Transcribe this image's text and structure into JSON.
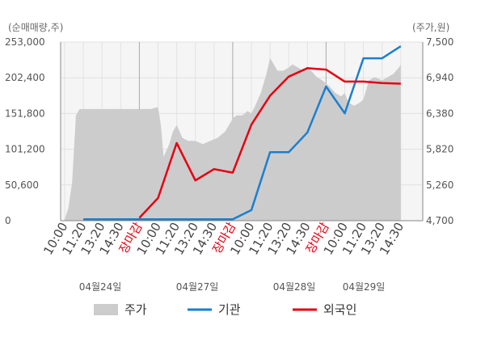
{
  "chart_data": {
    "type": "line",
    "left_axis_label": "(순매매량,주)",
    "right_axis_label": "(주가,원)",
    "left_ticks": [
      "253,000",
      "202,400",
      "151,800",
      "101,200",
      "50,600",
      "0"
    ],
    "right_ticks": [
      "7,500",
      "6,940",
      "6,380",
      "5,820",
      "5,260",
      "4,700"
    ],
    "left_range": [
      0,
      253000
    ],
    "right_range": [
      4700,
      7500
    ],
    "x_ticks": [
      "10:00",
      "11:20",
      "13:20",
      "14:30",
      "장마감",
      "10:00",
      "11:20",
      "13:20",
      "14:30",
      "장마감",
      "10:00",
      "11:20",
      "13:20",
      "14:30",
      "장마감",
      "10:00",
      "11:20",
      "13:20",
      "14:30"
    ],
    "x_tick_highlight": "장마감",
    "dates": [
      "04월24일",
      "04월27일",
      "04월28일",
      "04월29일"
    ],
    "legend": [
      {
        "name": "주가",
        "color": "#cccccc",
        "shape": "area"
      },
      {
        "name": "기관",
        "color": "#1a7fd0",
        "shape": "line"
      },
      {
        "name": "외국인",
        "color": "#e60012",
        "shape": "line"
      }
    ],
    "series": [
      {
        "name": "기관",
        "color": "#1a7fd0",
        "x": [
          1,
          2,
          3,
          4,
          5,
          6,
          7,
          8,
          9,
          10,
          11,
          12,
          13,
          14,
          15,
          16,
          17,
          18
        ],
        "values": [
          2000,
          2000,
          2000,
          2000,
          2000,
          2000,
          2000,
          2000,
          2000,
          15000,
          97000,
          97000,
          125000,
          190000,
          152000,
          230000,
          230000,
          247000
        ]
      },
      {
        "name": "외국인",
        "color": "#e60012",
        "x": [
          4,
          5,
          6,
          7,
          8,
          9,
          10,
          11,
          12,
          13,
          14,
          15,
          16,
          17,
          18
        ],
        "values": [
          4000,
          32000,
          110000,
          57000,
          73000,
          68000,
          136000,
          177000,
          204000,
          216000,
          214000,
          197000,
          197000,
          195000,
          194000
        ]
      },
      {
        "name": "주가",
        "color": "#cccccc",
        "x": [
          0,
          0.2,
          0.4,
          0.6,
          0.8,
          1.0,
          2,
          3,
          4,
          4.6,
          5,
          5.15,
          5.3,
          5.6,
          5.8,
          6,
          6.3,
          6.6,
          7,
          7.4,
          7.8,
          8.2,
          8.6,
          9,
          9.2,
          9.5,
          9.8,
          10,
          10.2,
          10.5,
          10.8,
          11,
          11.2,
          11.4,
          11.7,
          12,
          12.2,
          12.5,
          12.8,
          13,
          13.2,
          13.5,
          13.8,
          14,
          14.2,
          14.5,
          14.8,
          15,
          15.2,
          15.5,
          15.8,
          16,
          16.3,
          16.6,
          17,
          17.3,
          17.6,
          17.9,
          18.0
        ],
        "values": [
          4720,
          4900,
          5300,
          6350,
          6450,
          6450,
          6450,
          6450,
          6450,
          6450,
          6480,
          6200,
          5700,
          5900,
          6100,
          6200,
          6000,
          5950,
          5950,
          5900,
          5950,
          6000,
          6100,
          6300,
          6350,
          6350,
          6420,
          6380,
          6500,
          6700,
          7000,
          7250,
          7150,
          7050,
          7050,
          7100,
          7150,
          7100,
          7050,
          7100,
          7050,
          6950,
          6900,
          6850,
          6800,
          6700,
          6650,
          6700,
          6550,
          6500,
          6550,
          6600,
          6900,
          6950,
          6900,
          6950,
          7000,
          7100,
          7150
        ]
      }
    ]
  }
}
